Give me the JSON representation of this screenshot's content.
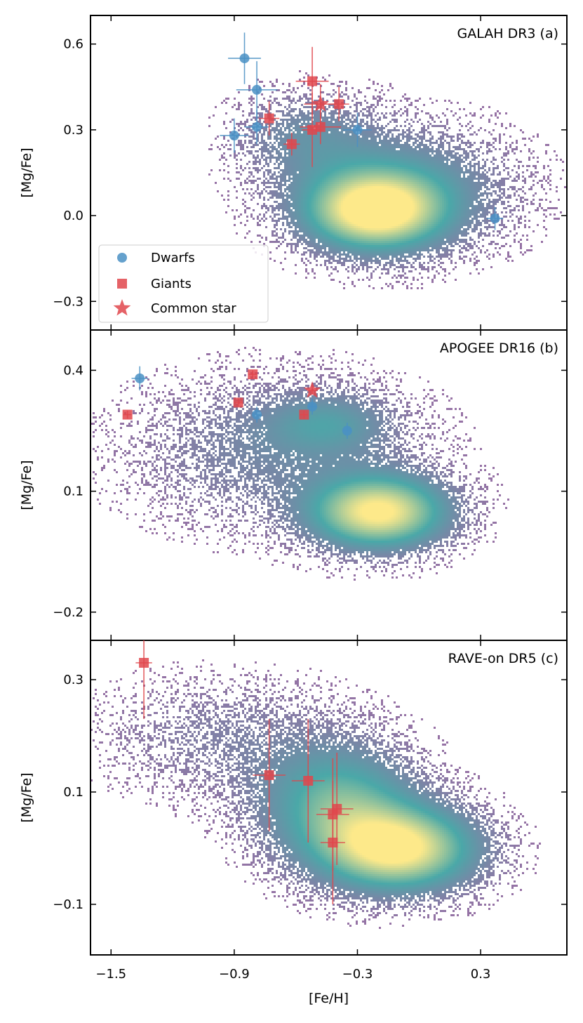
{
  "colors": {
    "dwarf": "#4a90c4",
    "giant": "#e0474c",
    "density_low": "#9a6fa5",
    "density_mid": "#4aa8a8",
    "density_high": "#fde98a",
    "frame": "#000000"
  },
  "legend": {
    "entries": [
      {
        "label": "Dwarfs",
        "marker": "circle"
      },
      {
        "label": "Giants",
        "marker": "square"
      },
      {
        "label": "Common star",
        "marker": "star"
      }
    ]
  },
  "chart_data": [
    {
      "type": "scatter",
      "title": "GALAH DR3 (a)",
      "xlabel": "[Fe/H]",
      "ylabel": "[Mg/Fe]",
      "xlim": [
        -1.6,
        0.72
      ],
      "ylim": [
        -0.4,
        0.7
      ],
      "xticks": [
        -1.5,
        -0.9,
        -0.3,
        0.3
      ],
      "yticks": [
        0.6,
        0.3,
        0.0,
        -0.3
      ],
      "ytick_labels": [
        "0.6",
        "0.3",
        "0.0",
        "−0.3"
      ],
      "density": {
        "description": "2D histogram of survey stars",
        "blobs": [
          {
            "cx": -0.22,
            "cy": 0.02,
            "sx": 0.22,
            "sy": 0.09,
            "w": 1.0
          },
          {
            "cx": -0.55,
            "cy": 0.28,
            "sx": 0.22,
            "sy": 0.1,
            "w": 0.25
          },
          {
            "cx": -0.1,
            "cy": 0.1,
            "sx": 0.35,
            "sy": 0.14,
            "w": 0.35
          }
        ]
      },
      "series": [
        {
          "name": "Dwarfs",
          "marker": "circle",
          "points": [
            {
              "x": -0.85,
              "y": 0.55,
              "xerr": 0.08,
              "yerr": 0.09
            },
            {
              "x": -0.79,
              "y": 0.44,
              "xerr": 0.1,
              "yerr": 0.1
            },
            {
              "x": -0.79,
              "y": 0.31,
              "xerr": 0.06,
              "yerr": 0.06
            },
            {
              "x": -0.9,
              "y": 0.28,
              "xerr": 0.07,
              "yerr": 0.06
            },
            {
              "x": -0.3,
              "y": 0.3,
              "xerr": 0.07,
              "yerr": 0.06
            },
            {
              "x": 0.37,
              "y": -0.01,
              "xerr": 0.04,
              "yerr": 0.04
            }
          ]
        },
        {
          "name": "Giants",
          "marker": "square",
          "points": [
            {
              "x": -0.52,
              "y": 0.47,
              "xerr": 0.08,
              "yerr": 0.12
            },
            {
              "x": -0.39,
              "y": 0.39,
              "xerr": 0.05,
              "yerr": 0.06
            },
            {
              "x": -0.73,
              "y": 0.34,
              "xerr": 0.05,
              "yerr": 0.06
            },
            {
              "x": -0.52,
              "y": 0.3,
              "xerr": 0.05,
              "yerr": 0.13
            },
            {
              "x": -0.48,
              "y": 0.31,
              "xerr": 0.1,
              "yerr": 0.06
            },
            {
              "x": -0.62,
              "y": 0.25,
              "xerr": 0.04,
              "yerr": 0.04
            }
          ]
        },
        {
          "name": "Common star",
          "marker": "star",
          "points": [
            {
              "x": -0.48,
              "y": 0.39,
              "xerr": 0.08,
              "yerr": 0.07
            }
          ]
        }
      ]
    },
    {
      "type": "scatter",
      "title": "APOGEE DR16 (b)",
      "xlabel": "[Fe/H]",
      "ylabel": "[Mg/Fe]",
      "xlim": [
        -1.6,
        0.72
      ],
      "ylim": [
        -0.27,
        0.5
      ],
      "xticks": [
        -1.5,
        -0.9,
        -0.3,
        0.3
      ],
      "yticks": [
        0.4,
        0.1,
        -0.2
      ],
      "ytick_labels": [
        "0.4",
        "0.1",
        "−0.2"
      ],
      "density": {
        "description": "2D histogram of survey stars",
        "blobs": [
          {
            "cx": -0.2,
            "cy": 0.05,
            "sx": 0.22,
            "sy": 0.06,
            "w": 1.0
          },
          {
            "cx": -0.45,
            "cy": 0.27,
            "sx": 0.2,
            "sy": 0.05,
            "w": 0.3
          },
          {
            "cx": -0.7,
            "cy": 0.2,
            "sx": 0.45,
            "sy": 0.12,
            "w": 0.22
          }
        ]
      },
      "series": [
        {
          "name": "Dwarfs",
          "marker": "circle",
          "points": [
            {
              "x": -1.36,
              "y": 0.38,
              "xerr": 0.04,
              "yerr": 0.03
            },
            {
              "x": -0.52,
              "y": 0.31,
              "xerr": 0.02,
              "yerr": 0.02
            },
            {
              "x": -0.79,
              "y": 0.29,
              "xerr": 0.02,
              "yerr": 0.02
            },
            {
              "x": -0.35,
              "y": 0.25,
              "xerr": 0.02,
              "yerr": 0.02
            }
          ]
        },
        {
          "name": "Giants",
          "marker": "square",
          "points": [
            {
              "x": -0.81,
              "y": 0.39,
              "xerr": 0.02,
              "yerr": 0.01
            },
            {
              "x": -0.88,
              "y": 0.32,
              "xerr": 0.02,
              "yerr": 0.01
            },
            {
              "x": -1.42,
              "y": 0.29,
              "xerr": 0.02,
              "yerr": 0.01
            },
            {
              "x": -0.56,
              "y": 0.29,
              "xerr": 0.02,
              "yerr": 0.01
            }
          ]
        },
        {
          "name": "Common star",
          "marker": "star",
          "points": [
            {
              "x": -0.52,
              "y": 0.35,
              "xerr": 0.02,
              "yerr": 0.01
            }
          ]
        }
      ]
    },
    {
      "type": "scatter",
      "title": "RAVE-on DR5 (c)",
      "xlabel": "[Fe/H]",
      "ylabel": "[Mg/Fe]",
      "xlim": [
        -1.6,
        0.72
      ],
      "ylim": [
        -0.19,
        0.37
      ],
      "xticks": [
        -1.5,
        -0.9,
        -0.3,
        0.3
      ],
      "xtick_labels": [
        "−1.5",
        "−0.9",
        "−0.3",
        "0.3"
      ],
      "yticks": [
        0.3,
        0.1,
        -0.1
      ],
      "ytick_labels": [
        "0.3",
        "0.1",
        "−0.1"
      ],
      "density": {
        "description": "2D histogram of survey stars",
        "blobs": [
          {
            "cx": -0.1,
            "cy": 0.0,
            "sx": 0.25,
            "sy": 0.05,
            "w": 1.0
          },
          {
            "cx": -0.4,
            "cy": 0.08,
            "sx": 0.25,
            "sy": 0.07,
            "w": 0.6
          },
          {
            "cx": -0.95,
            "cy": 0.2,
            "sx": 0.4,
            "sy": 0.07,
            "w": 0.15
          }
        ]
      },
      "series": [
        {
          "name": "Giants",
          "marker": "square",
          "points": [
            {
              "x": -1.34,
              "y": 0.33,
              "xerr": 0.04,
              "yerr": 0.1
            },
            {
              "x": -0.73,
              "y": 0.13,
              "xerr": 0.08,
              "yerr": 0.1
            },
            {
              "x": -0.54,
              "y": 0.12,
              "xerr": 0.08,
              "yerr": 0.11
            },
            {
              "x": -0.4,
              "y": 0.07,
              "xerr": 0.08,
              "yerr": 0.1
            },
            {
              "x": -0.42,
              "y": 0.06,
              "xerr": 0.08,
              "yerr": 0.1
            },
            {
              "x": -0.42,
              "y": 0.01,
              "xerr": 0.06,
              "yerr": 0.11
            }
          ]
        }
      ]
    }
  ]
}
